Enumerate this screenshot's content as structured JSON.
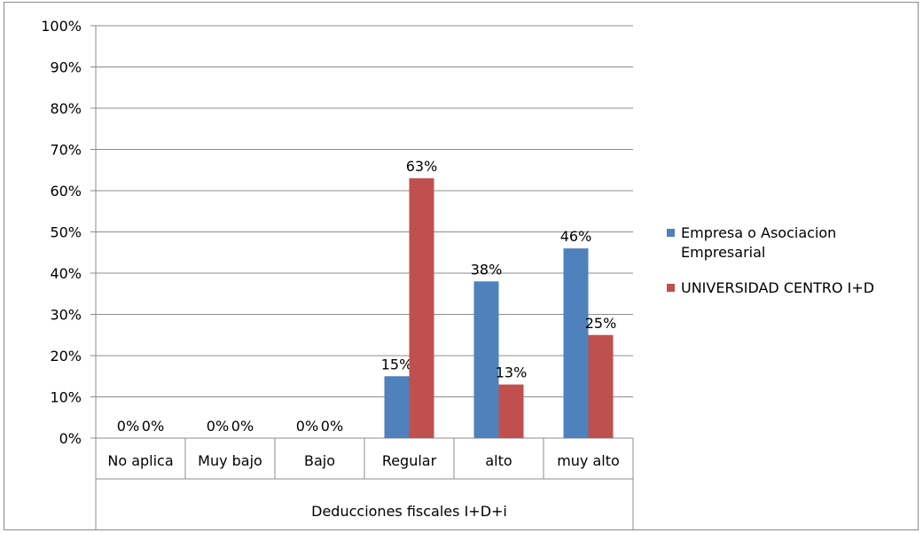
{
  "chart_data": {
    "type": "bar",
    "title": "",
    "xlabel": "",
    "ylabel": "",
    "ylim": [
      0,
      100
    ],
    "ytick_labels": [
      "0%",
      "10%",
      "20%",
      "30%",
      "40%",
      "50%",
      "60%",
      "70%",
      "80%",
      "90%",
      "100%"
    ],
    "categories": [
      "No aplica",
      "Muy bajo",
      "Bajo",
      "Regular",
      "alto",
      "muy alto"
    ],
    "group_label": "Deducciones fiscales I+D+i",
    "series": [
      {
        "name": "Empresa o Asociacion Empresarial",
        "name_lines": [
          "Empresa o Asociacion",
          "Empresarial"
        ],
        "color": "#4f81bd",
        "values": [
          0,
          0,
          0,
          15,
          38,
          46
        ],
        "labels": [
          "0%",
          "0%",
          "0%",
          "15%",
          "38%",
          "46%"
        ]
      },
      {
        "name": "UNIVERSIDAD CENTRO I+D",
        "name_lines": [
          "UNIVERSIDAD CENTRO I+D"
        ],
        "color": "#c0504d",
        "values": [
          0,
          0,
          0,
          63,
          13,
          25
        ],
        "labels": [
          "0%",
          "0%",
          "0%",
          "63%",
          "13%",
          "25%"
        ]
      }
    ],
    "grid": true,
    "legend": "right"
  }
}
